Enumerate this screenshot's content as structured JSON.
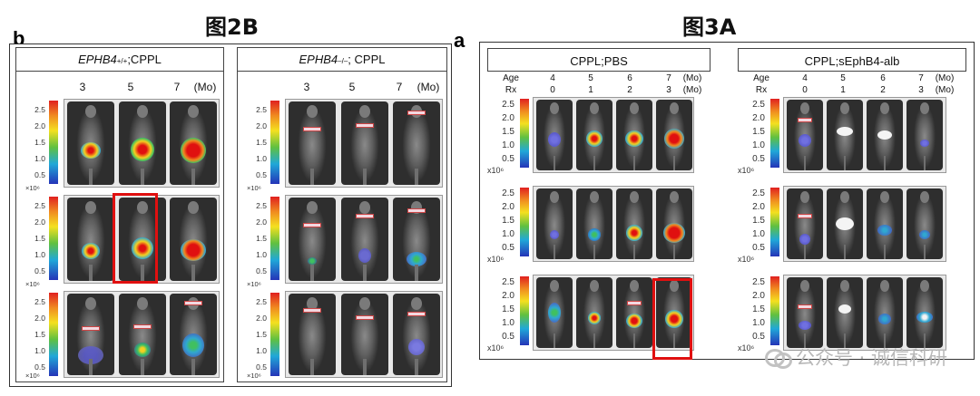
{
  "titles": {
    "left": "图2B",
    "right": "图3A"
  },
  "panels": {
    "left_letter": "b",
    "right_letter": "a"
  },
  "fig2b": {
    "groups": [
      {
        "genotype": "EPHB4",
        "superscript": "+/+",
        "suffix": ";CPPL",
        "ages": [
          "3",
          "5",
          "7"
        ],
        "age_unit": "(Mo)"
      },
      {
        "genotype": "EPHB4",
        "superscript": "–/–",
        "suffix": "; CPPL",
        "ages": [
          "3",
          "5",
          "7"
        ],
        "age_unit": "(Mo)"
      }
    ],
    "scale_ticks": [
      "2.5",
      "2.0",
      "1.5",
      "1.0",
      "0.5"
    ],
    "scale_unit": "×10⁶"
  },
  "fig3a": {
    "groups": [
      {
        "title": "CPPL;PBS",
        "age_label": "Age",
        "rx_label": "Rx",
        "ages": [
          "4",
          "5",
          "6",
          "7"
        ],
        "rx": [
          "0",
          "1",
          "2",
          "3"
        ],
        "unit": "(Mo)"
      },
      {
        "title": "CPPL;sEphB4-alb",
        "age_label": "Age",
        "rx_label": "Rx",
        "ages": [
          "4",
          "5",
          "6",
          "7"
        ],
        "rx": [
          "0",
          "1",
          "2",
          "3"
        ],
        "unit": "(Mo)"
      }
    ],
    "scale_ticks": [
      "2.5",
      "2.0",
      "1.5",
      "1.0",
      "0.5"
    ],
    "scale_unit": "x10⁶"
  },
  "watermark": {
    "text": "公众号 · 诚信科研"
  }
}
